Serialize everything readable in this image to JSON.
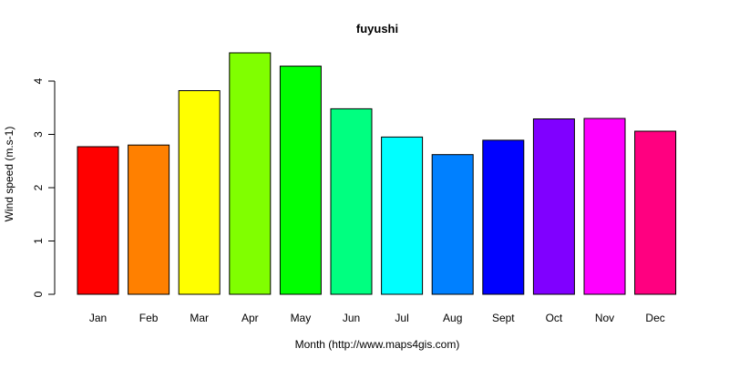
{
  "chart_data": {
    "type": "bar",
    "title": "fuyushi",
    "xlabel": "Month (http://www.maps4gis.com)",
    "ylabel": "Wind speed (m.s-1)",
    "categories": [
      "Jan",
      "Feb",
      "Mar",
      "Apr",
      "May",
      "Jun",
      "Jul",
      "Aug",
      "Sept",
      "Oct",
      "Nov",
      "Dec"
    ],
    "values": [
      2.77,
      2.8,
      3.82,
      4.53,
      4.28,
      3.48,
      2.95,
      2.62,
      2.89,
      3.29,
      3.3,
      3.06
    ],
    "colors": [
      "#FF0000",
      "#FF8000",
      "#FFFF00",
      "#80FF00",
      "#00FF00",
      "#00FF80",
      "#00FFFF",
      "#0080FF",
      "#0000FF",
      "#8000FF",
      "#FF00FF",
      "#FF0080"
    ],
    "yticks": [
      0,
      1,
      2,
      3,
      4
    ],
    "ylim": [
      0,
      4.6
    ],
    "grid": false,
    "legend": "none"
  }
}
